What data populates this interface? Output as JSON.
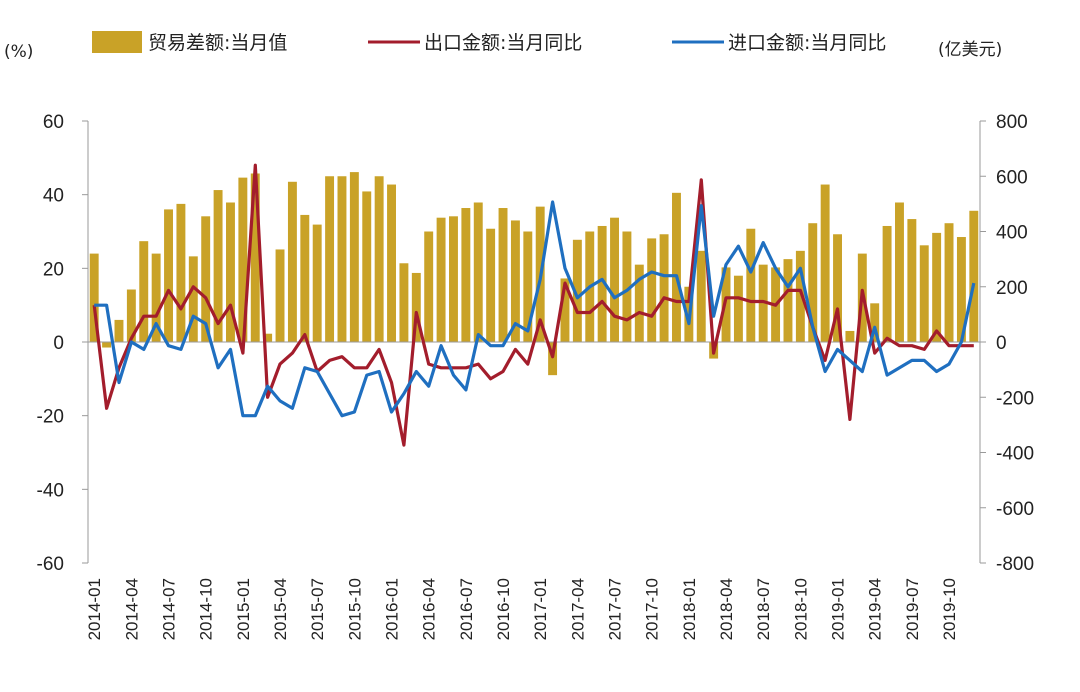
{
  "chart_data": {
    "type": "bar+line",
    "left_axis_unit": "(%)",
    "right_axis_unit": "(亿美元)",
    "left_ylim": [
      -60,
      60
    ],
    "right_ylim": [
      -800,
      800
    ],
    "left_ticks": [
      "60",
      "40",
      "20",
      "0",
      "-20",
      "-40",
      "-60"
    ],
    "right_ticks": [
      "800",
      "600",
      "400",
      "200",
      "0",
      "-200",
      "-400",
      "-600",
      "-800"
    ],
    "x_tick_labels": [
      "2014-01",
      "2014-04",
      "2014-07",
      "2014-10",
      "2015-01",
      "2015-04",
      "2015-07",
      "2015-10",
      "2016-01",
      "2016-04",
      "2016-07",
      "2016-10",
      "2017-01",
      "2017-04",
      "2017-07",
      "2017-10",
      "2018-01",
      "2018-04",
      "2018-07",
      "2018-10",
      "2019-01",
      "2019-04",
      "2019-07",
      "2019-10"
    ],
    "legend_position": "top",
    "grid": false,
    "categories": [
      "2014-01",
      "2014-02",
      "2014-03",
      "2014-04",
      "2014-05",
      "2014-06",
      "2014-07",
      "2014-08",
      "2014-09",
      "2014-10",
      "2014-11",
      "2014-12",
      "2015-01",
      "2015-02",
      "2015-03",
      "2015-04",
      "2015-05",
      "2015-06",
      "2015-07",
      "2015-08",
      "2015-09",
      "2015-10",
      "2015-11",
      "2015-12",
      "2016-01",
      "2016-02",
      "2016-03",
      "2016-04",
      "2016-05",
      "2016-06",
      "2016-07",
      "2016-08",
      "2016-09",
      "2016-10",
      "2016-11",
      "2016-12",
      "2017-01",
      "2017-02",
      "2017-03",
      "2017-04",
      "2017-05",
      "2017-06",
      "2017-07",
      "2017-08",
      "2017-09",
      "2017-10",
      "2017-11",
      "2017-12",
      "2018-01",
      "2018-02",
      "2018-03",
      "2018-04",
      "2018-05",
      "2018-06",
      "2018-07",
      "2018-08",
      "2018-09",
      "2018-10",
      "2018-11",
      "2018-12",
      "2019-01",
      "2019-02",
      "2019-03",
      "2019-04",
      "2019-05",
      "2019-06",
      "2019-07",
      "2019-08",
      "2019-09",
      "2019-10",
      "2019-11",
      "2019-12"
    ],
    "series": [
      {
        "name": "贸易差额:当月值",
        "type": "bar",
        "axis": "right",
        "color": "#c9a227",
        "values": [
          320,
          -20,
          80,
          190,
          365,
          320,
          480,
          500,
          310,
          455,
          550,
          505,
          595,
          610,
          30,
          335,
          580,
          460,
          425,
          600,
          600,
          615,
          545,
          600,
          570,
          285,
          250,
          400,
          450,
          455,
          485,
          505,
          410,
          485,
          440,
          400,
          490,
          -120,
          230,
          370,
          400,
          420,
          450,
          400,
          280,
          375,
          390,
          540,
          200,
          330,
          -60,
          270,
          240,
          410,
          280,
          270,
          300,
          330,
          430,
          570,
          390,
          40,
          320,
          140,
          420,
          505,
          445,
          350,
          395,
          430,
          380,
          475
        ]
      },
      {
        "name": "出口金额:当月同比",
        "type": "line",
        "axis": "left",
        "color": "#a31d2c",
        "values": [
          10,
          -18,
          -7,
          1,
          7,
          7,
          14,
          9,
          15,
          12,
          5,
          10,
          -3,
          48,
          -15,
          -6,
          -3,
          2,
          -8,
          -5,
          -4,
          -7,
          -7,
          -2,
          -11,
          -28,
          8,
          -6,
          -7,
          -7,
          -7,
          -6,
          -10,
          -8,
          -2,
          -6,
          6,
          -4,
          16,
          8,
          8,
          11,
          7,
          6,
          8,
          7,
          12,
          11,
          11,
          44,
          -3,
          12,
          12,
          11,
          11,
          10,
          14,
          14,
          4,
          -5,
          9,
          -21,
          14,
          -3,
          1,
          -1,
          -1,
          -2,
          3,
          -1,
          -1,
          -1
        ]
      },
      {
        "name": "进口金额:当月同比",
        "type": "line",
        "axis": "left",
        "color": "#1f6fc0",
        "values": [
          10,
          10,
          -11,
          0,
          -2,
          5,
          -1,
          -2,
          7,
          5,
          -7,
          -2,
          -20,
          -20,
          -12,
          -16,
          -18,
          -7,
          -8,
          -14,
          -20,
          -19,
          -9,
          -8,
          -19,
          -14,
          -8,
          -12,
          -1,
          -9,
          -13,
          2,
          -1,
          -1,
          5,
          3,
          17,
          38,
          20,
          12,
          15,
          17,
          12,
          14,
          17,
          19,
          18,
          18,
          5,
          37,
          7,
          21,
          26,
          19,
          27,
          20,
          15,
          20,
          4,
          -8,
          -2,
          -5,
          -8,
          4,
          -9,
          -7,
          -5,
          -5,
          -8,
          -6,
          0,
          16
        ]
      }
    ]
  }
}
